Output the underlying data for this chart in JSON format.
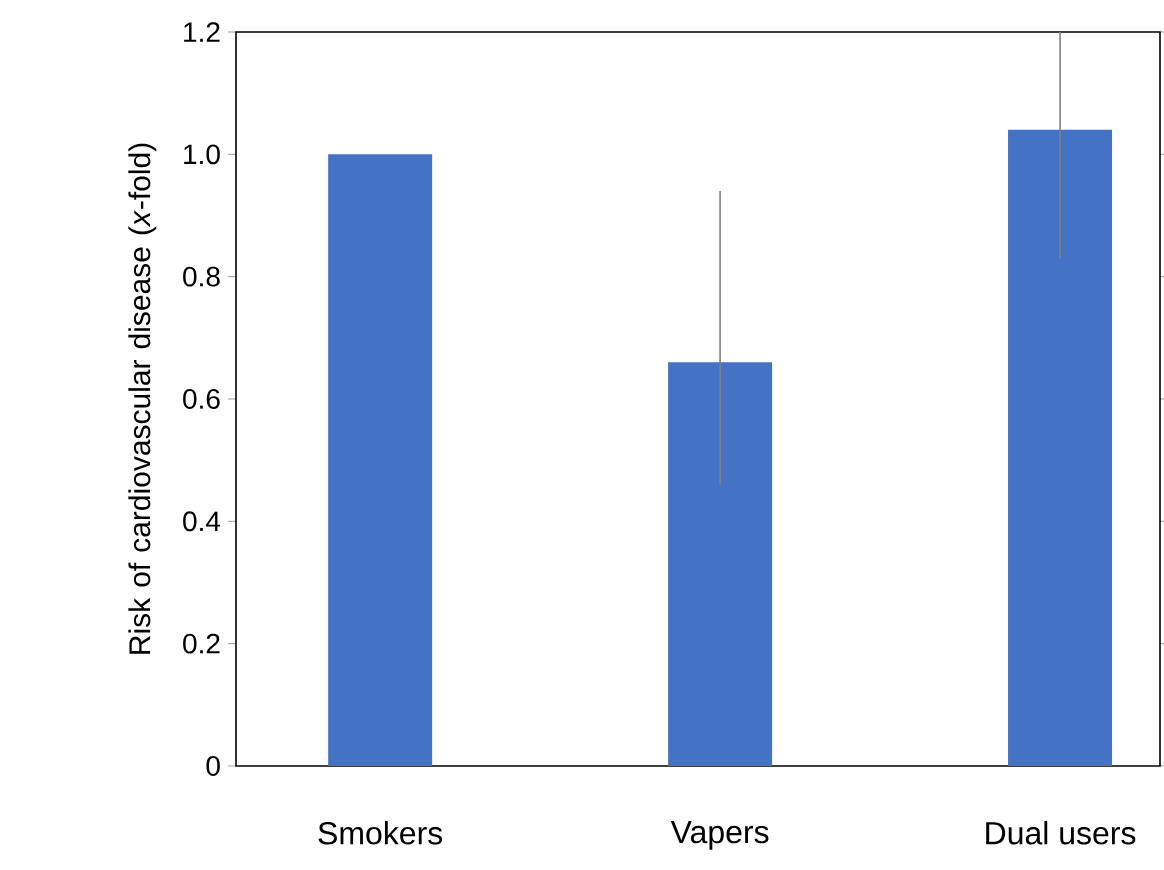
{
  "chart_data": {
    "type": "bar",
    "ylabel": "Risk of cardiovascular disease (*x*-fold)",
    "categories": [
      "Smokers",
      "Vapers",
      "Dual users"
    ],
    "values": [
      1.0,
      0.66,
      1.04
    ],
    "errors": [
      null,
      [
        0.46,
        0.94
      ],
      [
        0.83,
        1.2
      ]
    ],
    "color": "#4472c4",
    "ylim": [
      0,
      1.2
    ],
    "yticks": [
      0,
      0.2,
      0.4,
      0.6,
      0.8,
      {
        "value": 1,
        "label": "1.0"
      },
      1.2
    ],
    "grid": false
  }
}
